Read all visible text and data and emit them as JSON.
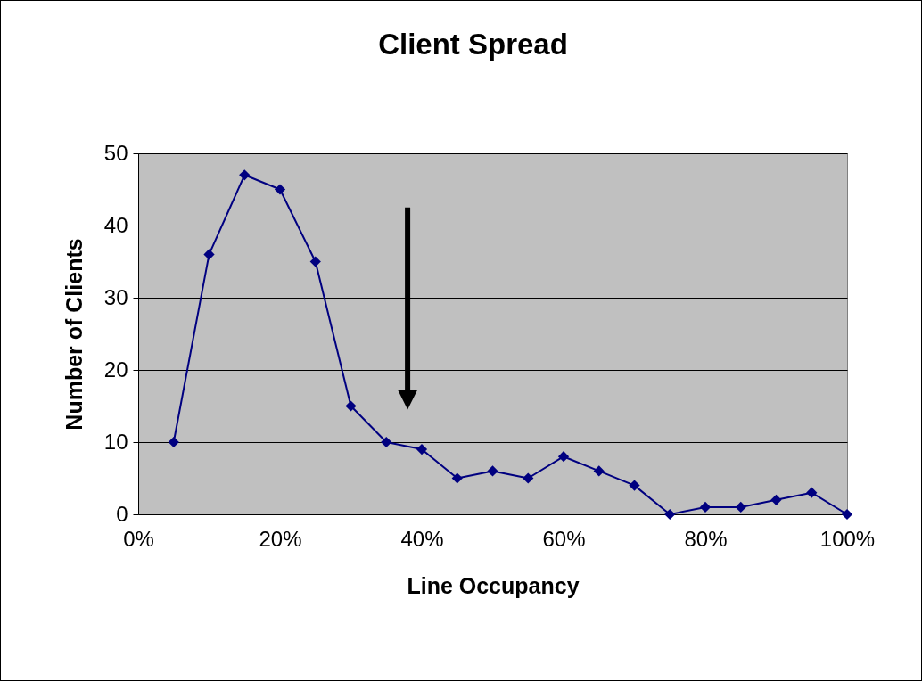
{
  "chart_data": {
    "type": "line",
    "title": "Client Spread",
    "xlabel": "Line Occupancy",
    "ylabel": "Number of Clients",
    "x": [
      5,
      10,
      15,
      20,
      25,
      30,
      35,
      40,
      45,
      50,
      55,
      60,
      65,
      70,
      75,
      80,
      85,
      90,
      95,
      100
    ],
    "series": [
      {
        "color": "#000080",
        "values": [
          10,
          36,
          47,
          45,
          35,
          15,
          10,
          9,
          5,
          6,
          5,
          8,
          6,
          4,
          0,
          1,
          1,
          2,
          3,
          0
        ]
      }
    ],
    "xlim": [
      0,
      100
    ],
    "xticks": [
      {
        "value": 0,
        "label": "0%"
      },
      {
        "value": 20,
        "label": "20%"
      },
      {
        "value": 40,
        "label": "40%"
      },
      {
        "value": 60,
        "label": "60%"
      },
      {
        "value": 80,
        "label": "80%"
      },
      {
        "value": 100,
        "label": "100%"
      }
    ],
    "ylim": [
      0,
      50
    ],
    "yticks": [
      0,
      10,
      20,
      30,
      40,
      50
    ],
    "grid": "y",
    "marker": "diamond",
    "line_style": "solid",
    "legend": false
  }
}
